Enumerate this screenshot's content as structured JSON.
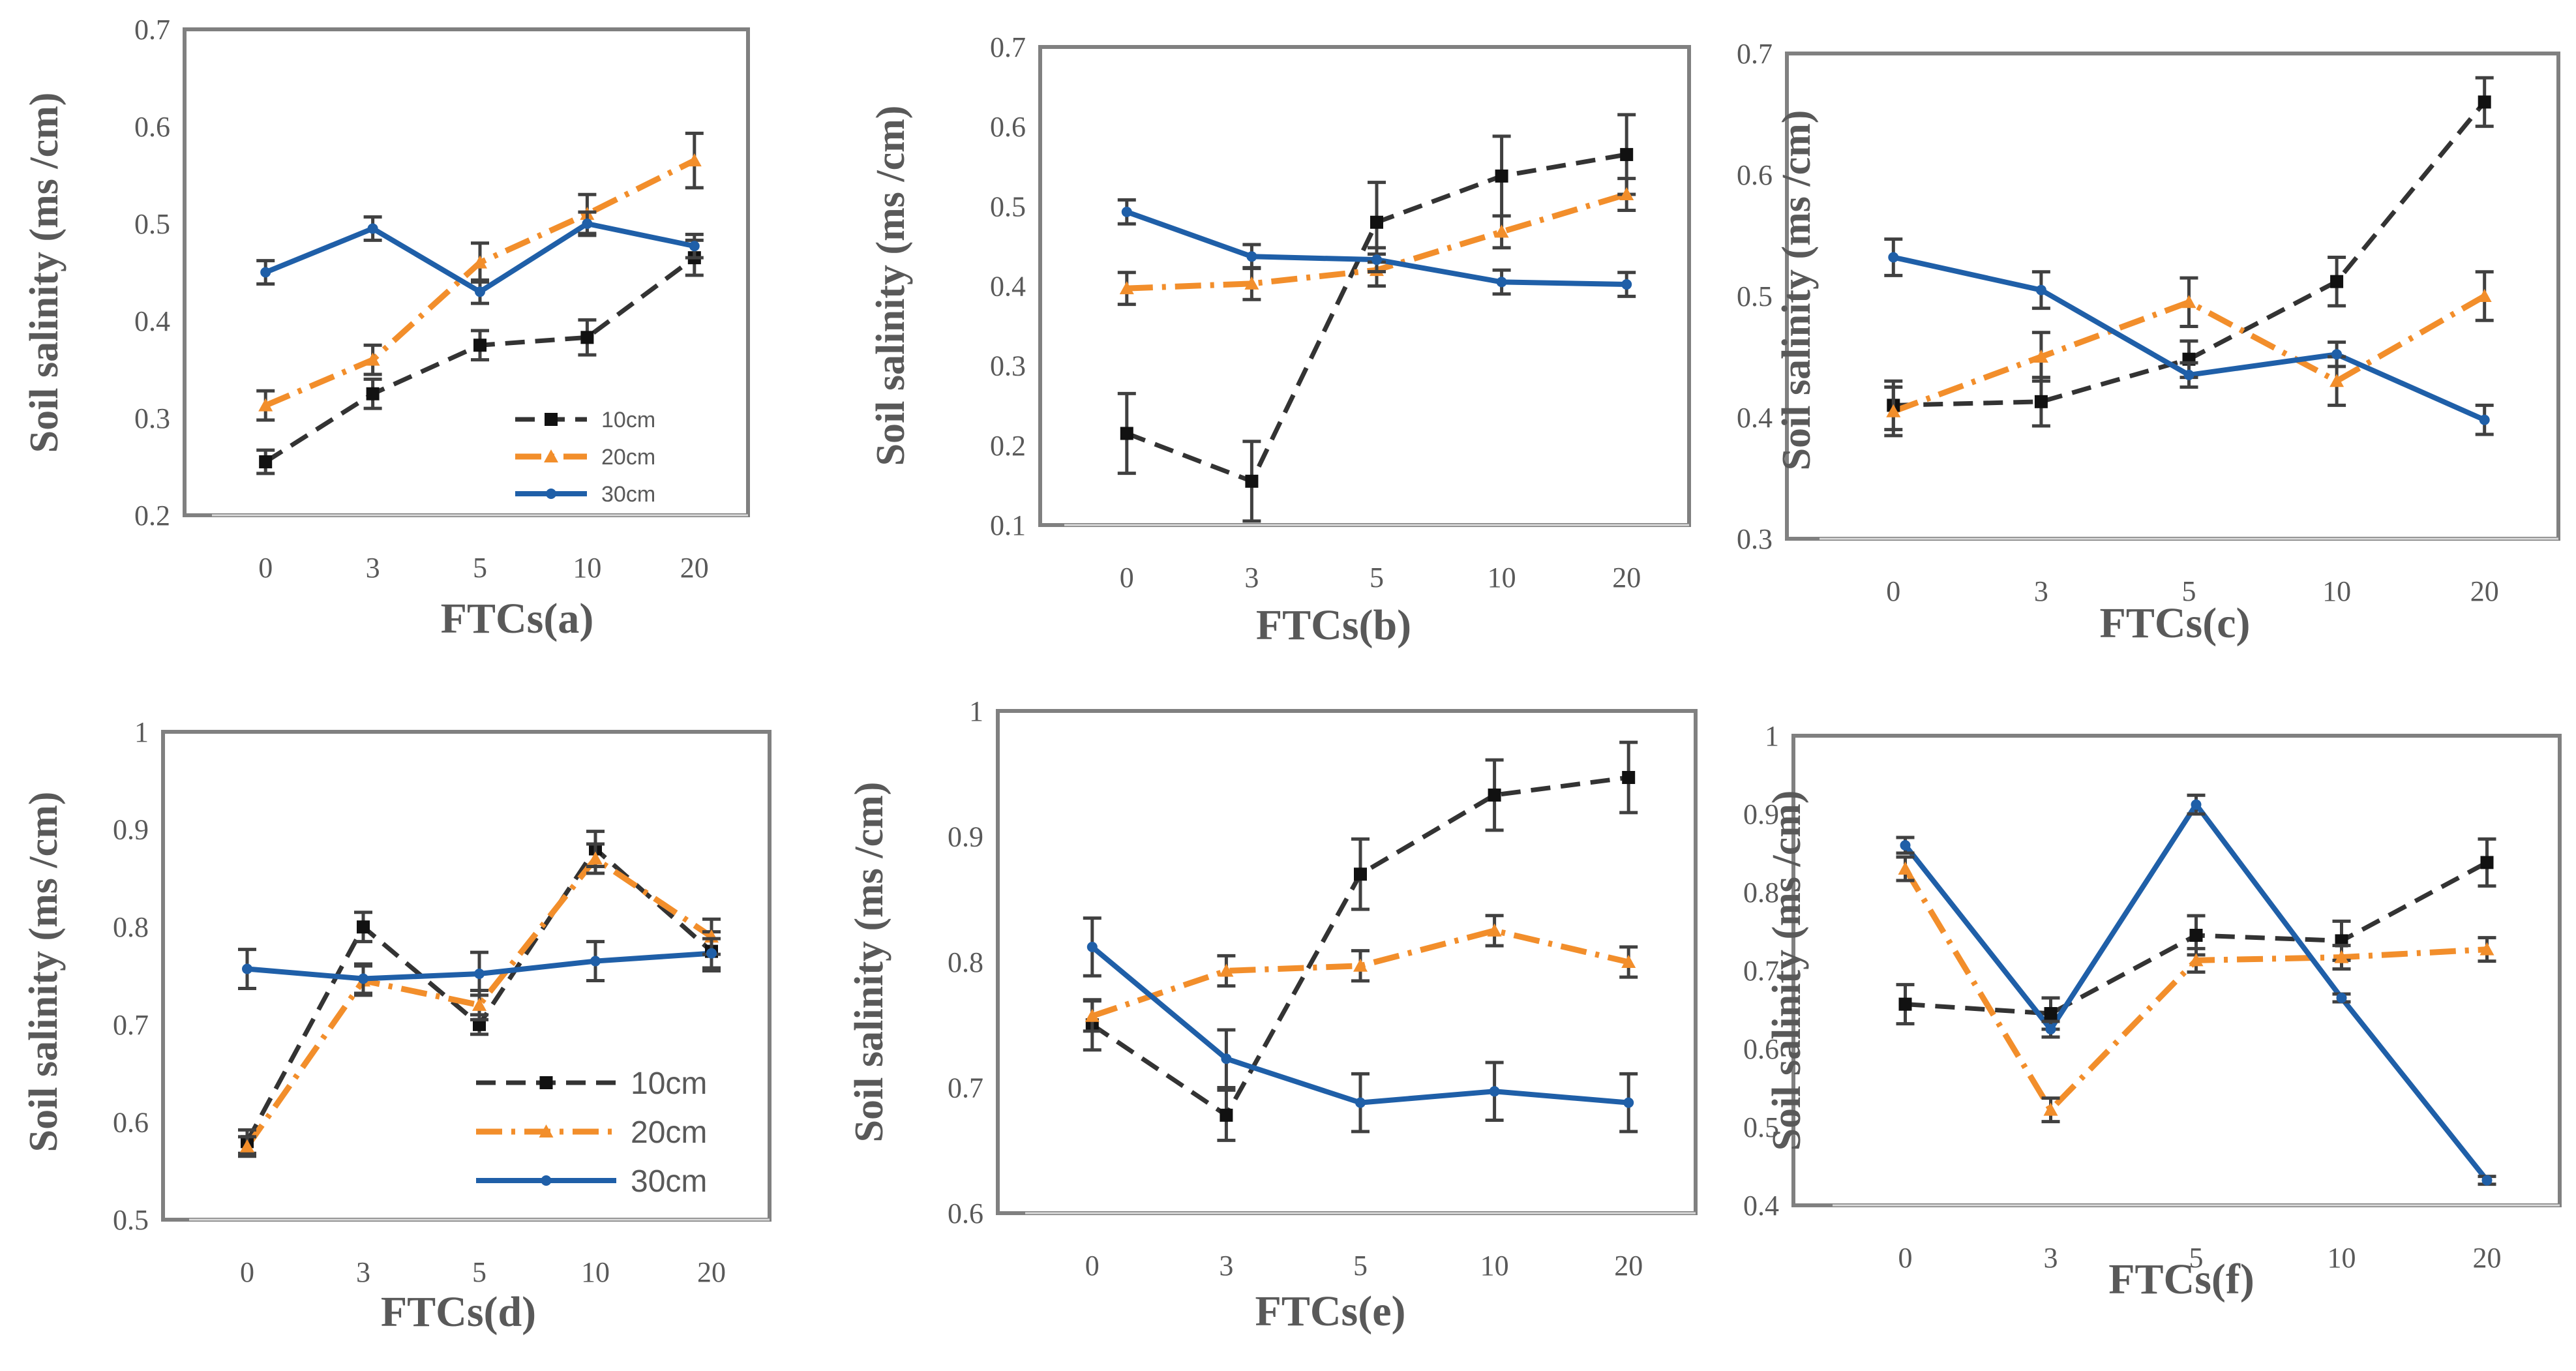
{
  "colors": {
    "s10": "#333333",
    "s20": "#f28e2b",
    "s30": "#1f5fa8",
    "error": "#404040",
    "text": "#595959"
  },
  "chart_data": [
    {
      "type": "line",
      "panel": "a",
      "xlabel": "FTCs(a)",
      "ylabel": "Soil salinity (ms /cm)",
      "categories": [
        "0",
        "3",
        "5",
        "10",
        "20"
      ],
      "ylim": [
        0.2,
        0.7
      ],
      "yticks": [
        "0.2",
        "0.3",
        "0.4",
        "0.5",
        "0.6",
        "0.7"
      ],
      "legend": "bottom-right",
      "series": [
        {
          "name": "10cm",
          "values": [
            0.255,
            0.325,
            0.375,
            0.383,
            0.465
          ],
          "errors": [
            0.012,
            0.015,
            0.015,
            0.018,
            0.018
          ]
        },
        {
          "name": "20cm",
          "values": [
            0.313,
            0.36,
            0.46,
            0.51,
            0.565
          ],
          "errors": [
            0.015,
            0.015,
            0.02,
            0.02,
            0.028
          ]
        },
        {
          "name": "30cm",
          "values": [
            0.45,
            0.495,
            0.43,
            0.5,
            0.477
          ],
          "errors": [
            0.012,
            0.012,
            0.012,
            0.012,
            0.012
          ]
        }
      ]
    },
    {
      "type": "line",
      "panel": "b",
      "xlabel": "FTCs(b)",
      "ylabel": "Soil salinity (ms /cm)",
      "categories": [
        "0",
        "3",
        "5",
        "10",
        "20"
      ],
      "ylim": [
        0.1,
        0.7
      ],
      "yticks": [
        "0.1",
        "0.2",
        "0.3",
        "0.4",
        "0.5",
        "0.6",
        "0.7"
      ],
      "legend": "none",
      "series": [
        {
          "name": "10cm",
          "values": [
            0.215,
            0.155,
            0.48,
            0.538,
            0.565
          ],
          "errors": [
            0.05,
            0.05,
            0.05,
            0.05,
            0.05
          ]
        },
        {
          "name": "20cm",
          "values": [
            0.397,
            0.403,
            0.42,
            0.468,
            0.515
          ],
          "errors": [
            0.02,
            0.02,
            0.02,
            0.02,
            0.02
          ]
        },
        {
          "name": "30cm",
          "values": [
            0.493,
            0.437,
            0.433,
            0.405,
            0.402
          ],
          "errors": [
            0.015,
            0.015,
            0.015,
            0.015,
            0.015
          ]
        }
      ]
    },
    {
      "type": "line",
      "panel": "c",
      "xlabel": "FTCs(c)",
      "ylabel": "Soil salinity (ms /cm)",
      "categories": [
        "0",
        "3",
        "5",
        "10",
        "20"
      ],
      "ylim": [
        0.3,
        0.7
      ],
      "yticks": [
        "0.3",
        "0.4",
        "0.5",
        "0.6",
        "0.7"
      ],
      "legend": "none",
      "series": [
        {
          "name": "10cm",
          "values": [
            0.41,
            0.413,
            0.448,
            0.512,
            0.66
          ],
          "errors": [
            0.02,
            0.02,
            0.015,
            0.02,
            0.02
          ]
        },
        {
          "name": "20cm",
          "values": [
            0.405,
            0.45,
            0.495,
            0.43,
            0.5
          ],
          "errors": [
            0.02,
            0.02,
            0.02,
            0.02,
            0.02
          ]
        },
        {
          "name": "30cm",
          "values": [
            0.532,
            0.505,
            0.435,
            0.452,
            0.398
          ],
          "errors": [
            0.015,
            0.015,
            0.01,
            0.01,
            0.012
          ]
        }
      ]
    },
    {
      "type": "line",
      "panel": "d",
      "xlabel": "FTCs(d)",
      "ylabel": "Soil salinity (ms /cm)",
      "categories": [
        "0",
        "3",
        "5",
        "10",
        "20"
      ],
      "ylim": [
        0.5,
        1.0
      ],
      "yticks": [
        "0.5",
        "0.6",
        "0.7",
        "0.8",
        "0.9",
        "1"
      ],
      "legend": "bottom-right",
      "series": [
        {
          "name": "10cm",
          "values": [
            0.58,
            0.8,
            0.7,
            0.88,
            0.775
          ],
          "errors": [
            0.012,
            0.015,
            0.01,
            0.018,
            0.02
          ]
        },
        {
          "name": "20cm",
          "values": [
            0.575,
            0.745,
            0.72,
            0.87,
            0.79
          ],
          "errors": [
            0.01,
            0.015,
            0.015,
            0.015,
            0.018
          ]
        },
        {
          "name": "30cm",
          "values": [
            0.757,
            0.747,
            0.752,
            0.765,
            0.773
          ],
          "errors": [
            0.02,
            0.015,
            0.022,
            0.02,
            0.015
          ]
        }
      ]
    },
    {
      "type": "line",
      "panel": "e",
      "xlabel": "FTCs(e)",
      "ylabel": "Soil salinity (ms /cm)",
      "categories": [
        "0",
        "3",
        "5",
        "10",
        "20"
      ],
      "ylim": [
        0.6,
        1.0
      ],
      "yticks": [
        "0.6",
        "0.7",
        "0.8",
        "0.9",
        "1"
      ],
      "legend": "none",
      "series": [
        {
          "name": "10cm",
          "values": [
            0.75,
            0.678,
            0.87,
            0.933,
            0.947
          ],
          "errors": [
            0.02,
            0.02,
            0.028,
            0.028,
            0.028
          ]
        },
        {
          "name": "20cm",
          "values": [
            0.757,
            0.793,
            0.797,
            0.825,
            0.8
          ],
          "errors": [
            0.012,
            0.012,
            0.012,
            0.012,
            0.012
          ]
        },
        {
          "name": "30cm",
          "values": [
            0.812,
            0.723,
            0.688,
            0.697,
            0.688
          ],
          "errors": [
            0.023,
            0.023,
            0.023,
            0.023,
            0.023
          ]
        }
      ]
    },
    {
      "type": "line",
      "panel": "f",
      "xlabel": "FTCs(f)",
      "ylabel": "Soil salinity (ms /cm)",
      "categories": [
        "0",
        "3",
        "5",
        "10",
        "20"
      ],
      "ylim": [
        0.4,
        1.0
      ],
      "yticks": [
        "0.4",
        "0.5",
        "0.6",
        "0.7",
        "0.8",
        "0.9",
        "1"
      ],
      "legend": "none",
      "series": [
        {
          "name": "10cm",
          "values": [
            0.657,
            0.645,
            0.745,
            0.738,
            0.838
          ],
          "errors": [
            0.025,
            0.02,
            0.025,
            0.025,
            0.03
          ]
        },
        {
          "name": "20cm",
          "values": [
            0.83,
            0.522,
            0.713,
            0.717,
            0.727
          ],
          "errors": [
            0.015,
            0.015,
            0.015,
            0.015,
            0.015
          ]
        },
        {
          "name": "30cm",
          "values": [
            0.86,
            0.625,
            0.912,
            0.665,
            0.432
          ],
          "errors": [
            0.01,
            0.01,
            0.012,
            0.005,
            0.005
          ]
        }
      ]
    }
  ]
}
